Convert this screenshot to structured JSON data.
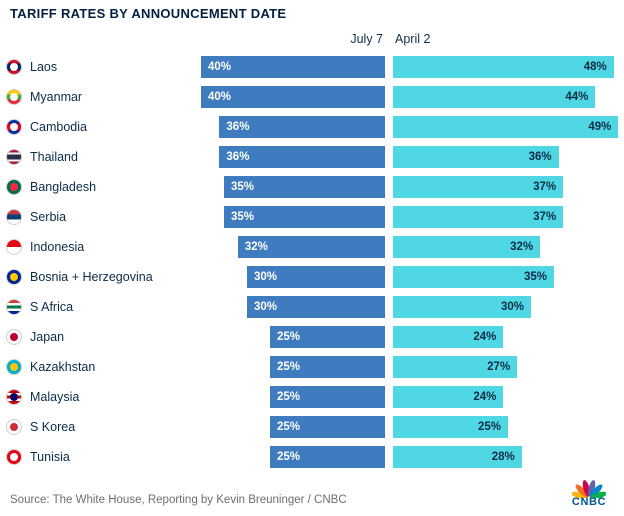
{
  "title": "TARIFF RATES BY ANNOUNCEMENT DATE",
  "columns": {
    "left_header": "July 7",
    "right_header": "April 2"
  },
  "source": "Source: The White House, Reporting by Kevin Breuninger / CNBC",
  "logo_text": "CNBC",
  "colors": {
    "left_bar": "#3e7cbf",
    "right_bar": "#4fd8e3",
    "title_text": "#03203e",
    "label_text": "#0b2c49",
    "source_text": "#6d6e71",
    "logo_text": "#005594"
  },
  "logo_feather_colors": [
    "#fcb711",
    "#f37021",
    "#cc004c",
    "#6460aa",
    "#0089d0",
    "#0db14b"
  ],
  "chart_data": {
    "type": "bar",
    "orientation": "horizontal",
    "title": "TARIFF RATES BY ANNOUNCEMENT DATE",
    "unit": "%",
    "xlim": [
      0,
      50
    ],
    "categories": [
      "Laos",
      "Myanmar",
      "Cambodia",
      "Thailand",
      "Bangladesh",
      "Serbia",
      "Indonesia",
      "Bosnia + Herzegovina",
      "S Africa",
      "Japan",
      "Kazakhstan",
      "Malaysia",
      "S Korea",
      "Tunisia"
    ],
    "series": [
      {
        "name": "July 7",
        "values": [
          40,
          40,
          36,
          36,
          35,
          35,
          32,
          30,
          30,
          25,
          25,
          25,
          25,
          25
        ]
      },
      {
        "name": "April 2",
        "values": [
          48,
          44,
          49,
          36,
          37,
          37,
          32,
          35,
          30,
          24,
          27,
          24,
          25,
          28
        ]
      }
    ]
  },
  "flags": [
    {
      "name": "laos",
      "stripes": [
        "#ce1126",
        "#002868",
        "#002868",
        "#ce1126"
      ],
      "dot": "#ffffff"
    },
    {
      "name": "myanmar",
      "stripes": [
        "#fecb00",
        "#34b233",
        "#ea2839"
      ],
      "dot": "#ffffff"
    },
    {
      "name": "cambodia",
      "stripes": [
        "#032ea1",
        "#e00025",
        "#e00025",
        "#032ea1"
      ],
      "dot": "#ffffff"
    },
    {
      "name": "thailand",
      "stripes": [
        "#a51931",
        "#f4f5f8",
        "#2d2a4a",
        "#2d2a4a",
        "#f4f5f8",
        "#a51931"
      ]
    },
    {
      "name": "bangladesh",
      "stripes": [
        "#006a4e"
      ],
      "dot": "#f42a41"
    },
    {
      "name": "serbia",
      "stripes": [
        "#c6363c",
        "#0c4076",
        "#ffffff"
      ]
    },
    {
      "name": "indonesia",
      "stripes": [
        "#e70011",
        "#ffffff"
      ]
    },
    {
      "name": "bosnia-herzegovina",
      "stripes": [
        "#002395"
      ],
      "dot": "#fecb00"
    },
    {
      "name": "s-africa",
      "stripes": [
        "#de3831",
        "#ffffff",
        "#007749",
        "#ffffff",
        "#002395"
      ]
    },
    {
      "name": "japan",
      "stripes": [
        "#ffffff"
      ],
      "dot": "#bc002d"
    },
    {
      "name": "kazakhstan",
      "stripes": [
        "#00afca"
      ],
      "dot": "#fec50c"
    },
    {
      "name": "malaysia",
      "stripes": [
        "#cc0001",
        "#ffffff",
        "#cc0001",
        "#ffffff",
        "#cc0001"
      ],
      "dot": "#010066"
    },
    {
      "name": "s-korea",
      "stripes": [
        "#ffffff"
      ],
      "dot": "#cd2e3a"
    },
    {
      "name": "tunisia",
      "stripes": [
        "#e70013"
      ],
      "dot": "#ffffff"
    }
  ]
}
